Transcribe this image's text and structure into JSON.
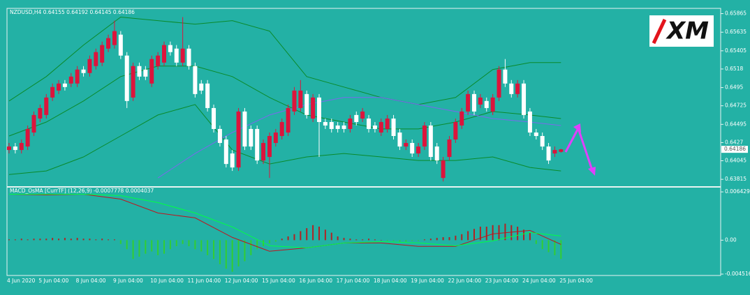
{
  "chart_data": [
    {
      "type": "candlestick",
      "title": "NZDUSD,H4  0.64155 0.64192 0.64145 0.64186",
      "logo": "XM",
      "categories": [
        "4 Jun 2020",
        null,
        null,
        null,
        null,
        "5 Jun 04:00",
        null,
        null,
        null,
        null,
        null,
        "8 Jun 04:00",
        null,
        null,
        null,
        null,
        null,
        "9 Jun 04:00",
        null,
        null,
        null,
        null,
        null,
        "10 Jun 04:00",
        null,
        null,
        null,
        null,
        null,
        "11 Jun 04:00",
        null,
        null,
        null,
        null,
        null,
        "12 Jun 04:00",
        null,
        null,
        null,
        null,
        null,
        "15 Jun 04:00",
        null,
        null,
        null,
        null,
        null,
        "16 Jun 04:00",
        null,
        null,
        null,
        null,
        null,
        "17 Jun 04:00",
        null,
        null,
        null,
        null,
        null,
        "18 Jun 04:00",
        null,
        null,
        null,
        null,
        null,
        "19 Jun 04:00",
        null,
        null,
        null,
        null,
        null,
        "22 Jun 04:00",
        null,
        null,
        null,
        null,
        null,
        "23 Jun 04:00",
        null,
        null,
        null,
        null,
        null,
        "24 Jun 04:00",
        null,
        null,
        null,
        null,
        null,
        "25 Jun 04:00"
      ],
      "open": [
        0.64178,
        0.64221,
        0.64178,
        0.64221,
        0.64394,
        0.64567,
        0.64611,
        0.64827,
        0.64913,
        0.65,
        0.65,
        0.65,
        0.65173,
        0.6513,
        0.65216,
        0.65259,
        0.65432,
        0.65476,
        0.65605,
        0.65346,
        0.64827,
        0.65216,
        0.65173,
        0.65,
        0.65216,
        0.65259,
        0.65476,
        0.65432,
        0.65259,
        0.65432,
        0.65216,
        0.65,
        0.65,
        0.64697,
        0.64438,
        0.64308,
        0.64135,
        0.63962,
        0.64654,
        0.64438,
        0.64438,
        0.64048,
        0.64092,
        0.64265,
        0.64351,
        0.64394,
        0.64654,
        0.64697,
        0.6487,
        0.64567,
        0.64827,
        0.64524,
        0.64524,
        0.64481,
        0.64481,
        0.64438,
        0.64611,
        0.64567,
        0.64567,
        0.64481,
        0.64394,
        0.64438,
        0.64567,
        0.64394,
        0.64221,
        0.64265,
        0.64135,
        0.64221,
        0.64481,
        0.64221,
        0.63832,
        0.64092,
        0.64308,
        0.64481,
        0.64654,
        0.6487,
        0.6474,
        0.64784,
        0.64654,
        0.64827,
        0.65173,
        0.65,
        0.6487,
        0.65,
        0.64654,
        0.64394,
        0.64351,
        0.64221,
        0.64135,
        0.64155
      ],
      "high": [
        0.64265,
        0.64265,
        0.64308,
        0.64481,
        0.64654,
        0.6474,
        0.6487,
        0.65,
        0.65043,
        0.65043,
        0.6513,
        0.65216,
        0.65216,
        0.65346,
        0.65432,
        0.65519,
        0.65605,
        0.65778,
        0.65649,
        0.65389,
        0.65259,
        0.65259,
        0.65216,
        0.65346,
        0.65389,
        0.65519,
        0.65519,
        0.65476,
        0.65822,
        0.65476,
        0.65259,
        0.65043,
        0.65043,
        0.6474,
        0.64481,
        0.64351,
        0.64178,
        0.64697,
        0.64697,
        0.64481,
        0.64481,
        0.64308,
        0.64394,
        0.64438,
        0.64567,
        0.6474,
        0.64957,
        0.65043,
        0.64913,
        0.6487,
        0.6487,
        0.64567,
        0.64567,
        0.64524,
        0.64524,
        0.64611,
        0.64654,
        0.64697,
        0.64611,
        0.64524,
        0.64567,
        0.64611,
        0.64611,
        0.64438,
        0.64308,
        0.64308,
        0.64265,
        0.64524,
        0.64524,
        0.64265,
        0.64092,
        0.64351,
        0.64567,
        0.64697,
        0.64913,
        0.64913,
        0.6487,
        0.64827,
        0.6487,
        0.65216,
        0.65303,
        0.65043,
        0.65043,
        0.65043,
        0.64697,
        0.64438,
        0.64394,
        0.64265,
        0.64221,
        0.64192
      ],
      "low": [
        0.64135,
        0.64135,
        0.64135,
        0.64178,
        0.64351,
        0.64524,
        0.64567,
        0.64784,
        0.6487,
        0.64913,
        0.64957,
        0.64957,
        0.65086,
        0.65086,
        0.65173,
        0.65216,
        0.65389,
        0.65432,
        0.65303,
        0.64697,
        0.64784,
        0.65043,
        0.65043,
        0.64957,
        0.65173,
        0.65216,
        0.65346,
        0.65216,
        0.65216,
        0.65173,
        0.64827,
        0.6487,
        0.64654,
        0.64394,
        0.64221,
        0.63962,
        0.63919,
        0.63919,
        0.64178,
        0.64178,
        0.64005,
        0.64005,
        0.63832,
        0.64221,
        0.64308,
        0.64351,
        0.64611,
        0.64654,
        0.64567,
        0.64524,
        0.64092,
        0.64438,
        0.64394,
        0.64394,
        0.64394,
        0.64394,
        0.64481,
        0.64524,
        0.64394,
        0.64394,
        0.64351,
        0.64394,
        0.64308,
        0.64178,
        0.64178,
        0.64092,
        0.64092,
        0.64178,
        0.64048,
        0.64005,
        0.63789,
        0.64048,
        0.64265,
        0.64438,
        0.64611,
        0.64611,
        0.64697,
        0.64654,
        0.64611,
        0.64784,
        0.64957,
        0.64827,
        0.64827,
        0.64567,
        0.64351,
        0.64308,
        0.64178,
        0.64005,
        0.64092,
        0.64145
      ],
      "close": [
        0.64221,
        0.64178,
        0.64265,
        0.64438,
        0.64611,
        0.64697,
        0.64827,
        0.64957,
        0.65,
        0.64957,
        0.65086,
        0.65173,
        0.6513,
        0.65303,
        0.65389,
        0.65476,
        0.65562,
        0.65649,
        0.65346,
        0.64784,
        0.65216,
        0.65086,
        0.65086,
        0.65303,
        0.65346,
        0.65476,
        0.65389,
        0.65259,
        0.65432,
        0.65216,
        0.6487,
        0.64913,
        0.64697,
        0.64438,
        0.64265,
        0.64005,
        0.63962,
        0.64654,
        0.64221,
        0.64221,
        0.64048,
        0.64265,
        0.64351,
        0.64394,
        0.64524,
        0.64697,
        0.64913,
        0.64913,
        0.64611,
        0.64827,
        0.64524,
        0.64481,
        0.64438,
        0.64438,
        0.64438,
        0.64567,
        0.64524,
        0.64654,
        0.64438,
        0.64438,
        0.64524,
        0.64567,
        0.64351,
        0.64221,
        0.64265,
        0.64135,
        0.64221,
        0.64481,
        0.64092,
        0.64048,
        0.64048,
        0.64308,
        0.64524,
        0.64654,
        0.6487,
        0.64654,
        0.64827,
        0.64697,
        0.64827,
        0.65173,
        0.65,
        0.6487,
        0.65,
        0.64611,
        0.64394,
        0.64351,
        0.64221,
        0.64048,
        0.64178,
        0.64186
      ],
      "up_color": "#dc143c",
      "down_color": "#ffffff",
      "series": [
        {
          "color": "#0a8a2a",
          "x": [
            0,
            6,
            12,
            18,
            24,
            30,
            36,
            42,
            48,
            54,
            60,
            66,
            72,
            78,
            84,
            89
          ],
          "values": [
            0.64784,
            0.65086,
            0.65476,
            0.65822,
            0.65778,
            0.65735,
            0.65778,
            0.65649,
            0.65086,
            0.64957,
            0.64827,
            0.6474,
            0.64827,
            0.65173,
            0.65259,
            0.65259
          ]
        },
        {
          "color": "#0a8a2a",
          "x": [
            0,
            6,
            12,
            18,
            24,
            30,
            36,
            42,
            48,
            54,
            60,
            66,
            72,
            78,
            84,
            89
          ],
          "values": [
            0.64351,
            0.64524,
            0.64784,
            0.65086,
            0.65216,
            0.65216,
            0.65086,
            0.64827,
            0.64611,
            0.64524,
            0.64438,
            0.64438,
            0.64524,
            0.64654,
            0.64611,
            0.64567
          ]
        },
        {
          "color": "#0a8a2a",
          "x": [
            0,
            6,
            12,
            18,
            24,
            30,
            36,
            42,
            48,
            54,
            60,
            66,
            72,
            78,
            84,
            89
          ],
          "values": [
            0.63875,
            0.63919,
            0.64092,
            0.64351,
            0.64611,
            0.6474,
            0.64178,
            0.64005,
            0.64092,
            0.64135,
            0.64092,
            0.64048,
            0.64048,
            0.64092,
            0.63962,
            0.63919
          ]
        },
        {
          "color": "#7b68ee",
          "x": [
            0,
            6,
            12,
            18,
            24,
            30,
            36,
            42,
            48,
            54,
            60,
            66,
            72,
            78,
            84,
            89
          ],
          "values": [
            null,
            null,
            null,
            null,
            0.63832,
            0.64135,
            0.64394,
            0.64611,
            0.6474,
            0.64827,
            0.64827,
            0.6474,
            0.64654,
            0.64567,
            0.64524,
            0.64481
          ]
        }
      ],
      "last_price": 0.64186,
      "ylim": [
        0.6373,
        0.6593
      ],
      "yticks": [
        0.65865,
        0.65635,
        0.65405,
        0.6518,
        0.6495,
        0.64725,
        0.64495,
        0.6427,
        0.64045,
        0.63815
      ]
    },
    {
      "type": "macd",
      "title": "MACD_OsMA [CurrTF] (12,26,9) -0.0007778 0.0004037",
      "values": [
        0.0001,
        0.0001,
        0.0002,
        0.0001,
        0.0002,
        0.0002,
        0.0002,
        0.0003,
        0.0002,
        0.0003,
        0.0002,
        0.0003,
        0.0002,
        0.0002,
        0.0001,
        0.0002,
        0.0001,
        0.0001,
        -0.0005,
        -0.0012,
        -0.0025,
        -0.0022,
        -0.0018,
        -0.0015,
        -0.002,
        -0.0018,
        -0.0012,
        -0.0008,
        -0.0005,
        -0.0008,
        -0.0012,
        -0.0015,
        -0.002,
        -0.0025,
        -0.0032,
        -0.0038,
        -0.0042,
        -0.0035,
        -0.0028,
        -0.002,
        -0.0012,
        -0.0008,
        -0.0004,
        -0.0002,
        0.0002,
        0.0005,
        0.0008,
        0.0012,
        0.0016,
        0.002,
        0.0018,
        0.0014,
        0.001,
        0.0005,
        0.0003,
        0.0002,
        0.0001,
        0.0001,
        0.0002,
        0.0001,
        0,
        -0.0001,
        -0.0001,
        -0.0002,
        -0.0002,
        -0.0001,
        -0.0001,
        0.0001,
        0.0002,
        0.0003,
        0.0004,
        0.0004,
        0.0006,
        0.0008,
        0.0012,
        0.0015,
        0.0018,
        0.0018,
        0.002,
        0.002,
        0.0022,
        0.002,
        0.0018,
        0.0014,
        0.001,
        -0.0005,
        -0.0012,
        -0.0016,
        -0.002,
        -0.0025
      ],
      "positive_color": "#b22222",
      "negative_color": "#32cd32",
      "series": [
        {
          "color": "#c0141e",
          "x": [
            0,
            6,
            12,
            18,
            24,
            30,
            36,
            42,
            48,
            54,
            60,
            66,
            72,
            78,
            84,
            89
          ],
          "values": [
            0.00612,
            0.00603,
            0.00612,
            0.00547,
            0.00362,
            0.00297,
            0.00037,
            -0.00148,
            -0.00102,
            -0.00037,
            -0.00037,
            -0.00083,
            -0.00083,
            0.00083,
            0.0013,
            -0.00056
          ]
        },
        {
          "color": "#00ff44",
          "x": [
            0,
            6,
            12,
            18,
            24,
            30,
            36,
            42,
            48,
            54,
            60,
            66,
            72,
            78,
            84,
            89
          ],
          "values": [
            0.00612,
            0.00612,
            0.00612,
            0.00593,
            0.005,
            0.00362,
            0.00176,
            -0.00074,
            -0.00102,
            -0.00037,
            -0.00019,
            -0.00037,
            -0.00074,
            -9e-05,
            0.00102,
            0.00056
          ]
        }
      ],
      "ylim": [
        -0.0047,
        0.007
      ],
      "yticks": [
        0.006429,
        {
          "value": 0,
          "label": "0.00"
        },
        -0.004516
      ]
    }
  ]
}
